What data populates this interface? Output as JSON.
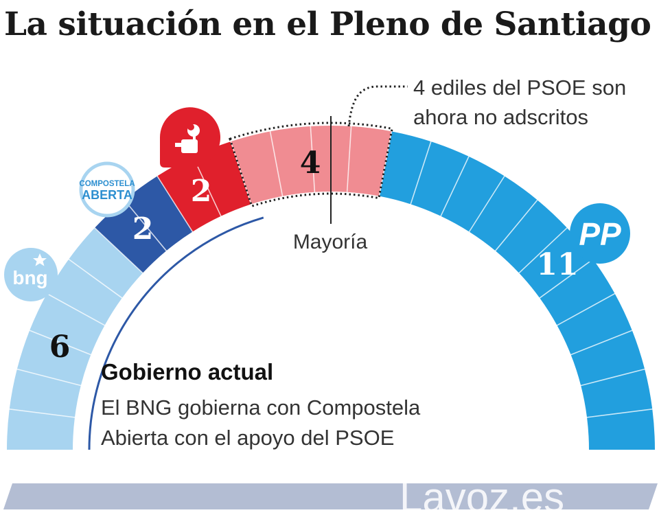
{
  "title": "La situación en el Pleno de Santiago",
  "chart_data": {
    "type": "parliament",
    "total_seats": 25,
    "majority_label": "Mayoría",
    "series": [
      {
        "name": "BNG",
        "logo_text": "bng",
        "seats": 6,
        "color": "#a8d4f0"
      },
      {
        "name": "Compostela Aberta",
        "logo_text": [
          "COMPOSTELA",
          "ABERTA"
        ],
        "seats": 2,
        "color": "#2d58a6"
      },
      {
        "name": "PSOE",
        "seats": 2,
        "color": "#e0202c"
      },
      {
        "name": "PSOE no adscritos",
        "seats": 4,
        "color": "#f08c92"
      },
      {
        "name": "PP",
        "logo_text": "PP",
        "seats": 11,
        "color": "#229fde"
      }
    ],
    "annotation": {
      "line1": "4 ediles del PSOE son",
      "line2": "ahora no adscritos"
    },
    "government": {
      "heading": "Gobierno actual",
      "line1": "El BNG gobierna con Compostela",
      "line2": "Abierta con el apoyo del PSOE"
    }
  },
  "footer": {
    "watermark": "Lavoz.es"
  }
}
